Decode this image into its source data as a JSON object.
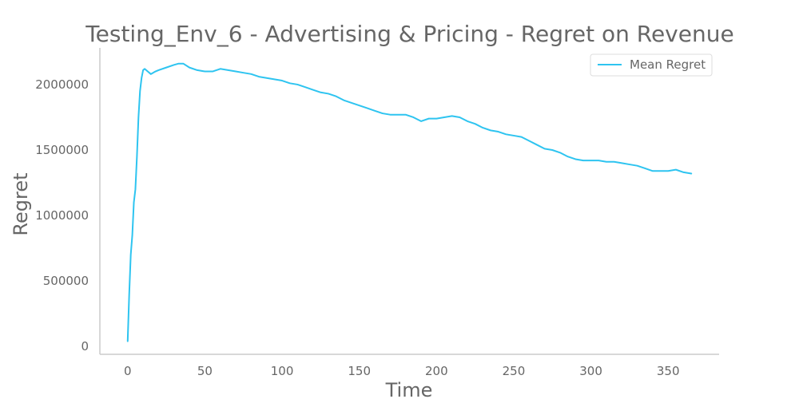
{
  "chart_data": {
    "type": "line",
    "title": "Testing_Env_6 - Advertising & Pricing - Regret on Revenue",
    "xlabel": "Time",
    "ylabel": "Regret",
    "xlim": [
      -18,
      383
    ],
    "ylim": [
      -60000,
      2280000
    ],
    "xticks": [
      0,
      50,
      100,
      150,
      200,
      250,
      300,
      350
    ],
    "yticks": [
      0,
      500000,
      1000000,
      1500000,
      2000000
    ],
    "grid": false,
    "legend_position": "top-right",
    "colors": {
      "line": "#2ec4f0",
      "axis": "#cccccc",
      "text": "#666666",
      "legend_border": "#dddddd",
      "background": "#ffffff"
    },
    "series": [
      {
        "name": "Mean Regret",
        "x": [
          0,
          1,
          2,
          3,
          4,
          5,
          6,
          7,
          8,
          9,
          10,
          11,
          12,
          15,
          18,
          20,
          25,
          30,
          33,
          36,
          40,
          45,
          50,
          55,
          60,
          65,
          70,
          75,
          80,
          85,
          90,
          95,
          100,
          105,
          110,
          115,
          120,
          125,
          130,
          135,
          140,
          145,
          150,
          155,
          160,
          165,
          170,
          175,
          180,
          185,
          190,
          195,
          200,
          205,
          210,
          215,
          220,
          225,
          230,
          235,
          240,
          245,
          250,
          255,
          260,
          265,
          270,
          275,
          280,
          285,
          290,
          295,
          300,
          305,
          310,
          315,
          320,
          325,
          330,
          335,
          340,
          345,
          350,
          355,
          360,
          365
        ],
        "y": [
          40000,
          400000,
          700000,
          850000,
          1100000,
          1200000,
          1450000,
          1750000,
          1950000,
          2050000,
          2110000,
          2120000,
          2110000,
          2080000,
          2100000,
          2110000,
          2130000,
          2150000,
          2160000,
          2160000,
          2130000,
          2110000,
          2100000,
          2100000,
          2120000,
          2110000,
          2100000,
          2090000,
          2080000,
          2060000,
          2050000,
          2040000,
          2030000,
          2010000,
          2000000,
          1980000,
          1960000,
          1940000,
          1930000,
          1910000,
          1880000,
          1860000,
          1840000,
          1820000,
          1800000,
          1780000,
          1770000,
          1770000,
          1770000,
          1750000,
          1720000,
          1740000,
          1740000,
          1750000,
          1760000,
          1750000,
          1720000,
          1700000,
          1670000,
          1650000,
          1640000,
          1620000,
          1610000,
          1600000,
          1570000,
          1540000,
          1510000,
          1500000,
          1480000,
          1450000,
          1430000,
          1420000,
          1420000,
          1420000,
          1410000,
          1410000,
          1400000,
          1390000,
          1380000,
          1360000,
          1340000,
          1340000,
          1340000,
          1350000,
          1330000,
          1320000
        ]
      }
    ]
  }
}
